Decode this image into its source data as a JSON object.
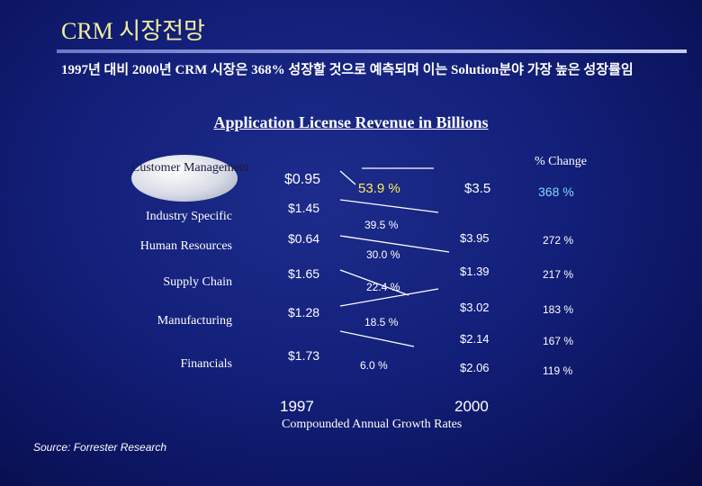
{
  "page": {
    "title": "CRM 시장전망",
    "subtitle": "1997년 대비 2000년 CRM 시장은 368% 성장할 것으로 예측되며 이는 Solution분야 가장 높은 성장률임",
    "source": "Source: Forrester Research"
  },
  "chart_data": {
    "type": "table",
    "title": "Application License Revenue in Billions",
    "change_header": "% Change",
    "footer": "Compounded Annual Growth Rates",
    "years": [
      "1997",
      "2000"
    ],
    "highlight_color": "#ffee55",
    "rows": [
      {
        "category": "Customer Management",
        "y1997": "$0.95",
        "cagr": "53.9 %",
        "y2000": "$3.5",
        "change": "368 %"
      },
      {
        "category": "Industry Specific",
        "y1997": "$1.45",
        "cagr": "39.5 %",
        "y2000": "$3.95",
        "change": "272 %"
      },
      {
        "category": "Human Resources",
        "y1997": "$0.64",
        "cagr": "30.0 %",
        "y2000": "$1.39",
        "change": "217 %"
      },
      {
        "category": "Supply Chain",
        "y1997": "$1.65",
        "cagr": "22.4 %",
        "y2000": "$3.02",
        "change": "183 %"
      },
      {
        "category": "Manufacturing",
        "y1997": "$1.28",
        "cagr": "18.5 %",
        "y2000": "$2.14",
        "change": "167 %"
      },
      {
        "category": "Financials",
        "y1997": "$1.73",
        "cagr": "6.0 %",
        "y2000": "$2.06",
        "change": "119 %"
      }
    ]
  }
}
